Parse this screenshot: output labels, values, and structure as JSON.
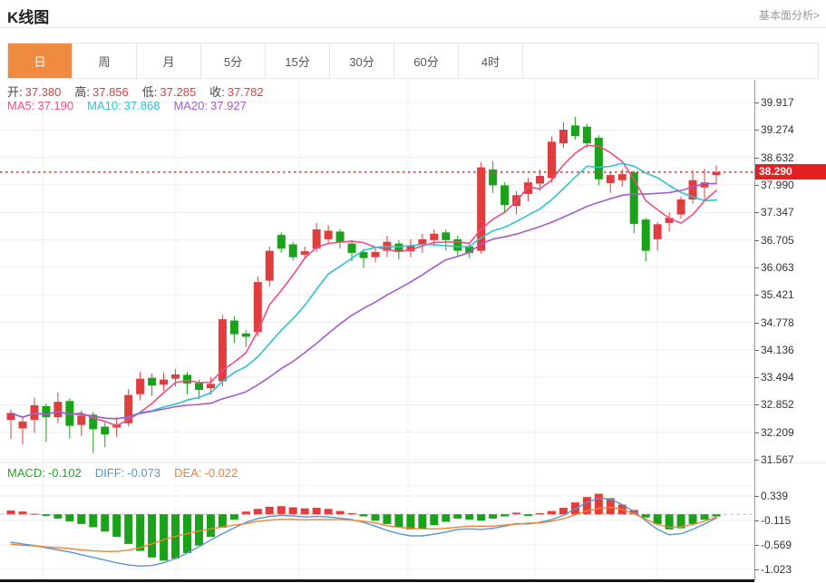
{
  "header": {
    "title": "K线图",
    "link": "基本面分析>"
  },
  "tabs": {
    "items": [
      "日",
      "周",
      "月",
      "5分",
      "15分",
      "30分",
      "60分",
      "4时"
    ],
    "active": "日"
  },
  "info": {
    "ohlc": [
      {
        "label": "开:",
        "value": "37.380"
      },
      {
        "label": "高:",
        "value": "37.856"
      },
      {
        "label": "低:",
        "value": "37.285"
      },
      {
        "label": "收:",
        "value": "37.782"
      }
    ],
    "ma": [
      {
        "label": "MA5:",
        "value": "37.190",
        "color": "#ef4d82"
      },
      {
        "label": "MA10:",
        "value": "37.868",
        "color": "#2cc2d4"
      },
      {
        "label": "MA20:",
        "value": "37.927",
        "color": "#a55bc9"
      }
    ],
    "macd": [
      {
        "label": "MACD:",
        "value": "-0.102",
        "color": "#27a227"
      },
      {
        "label": "DIFF:",
        "value": "-0.073",
        "color": "#5795d3"
      },
      {
        "label": "DEA:",
        "value": "-0.022",
        "color": "#ee8433"
      }
    ]
  },
  "axis": {
    "price_tag": "38.290"
  },
  "colors": {
    "up": "#e13d3d",
    "down": "#1aa21a",
    "ma5": "#ef4d82",
    "ma10": "#2cc2d4",
    "ma20": "#a55bc9",
    "diff": "#5795d3",
    "dea": "#ee8433",
    "active_tab_bg": "#ef8b41",
    "price_line": "#e13d3d",
    "tag_bg": "#e52020",
    "grid_h": "#ececec",
    "grid_v": "#f1f1f1",
    "zero_dash": "#a9cdcd"
  },
  "chart_data": [
    {
      "type": "candlestick",
      "title": "K线图 (日)",
      "ohlc_order": [
        "open",
        "high",
        "low",
        "close"
      ],
      "y_ticks": [
        39.917,
        39.274,
        38.632,
        37.99,
        37.347,
        36.705,
        36.063,
        35.421,
        34.778,
        34.136,
        33.494,
        32.852,
        32.209,
        31.567
      ],
      "last_price": 38.29,
      "candles": [
        [
          32.5,
          32.74,
          32.05,
          32.66
        ],
        [
          32.3,
          32.54,
          31.92,
          32.46
        ],
        [
          32.5,
          33.02,
          32.2,
          32.84
        ],
        [
          32.82,
          32.88,
          31.98,
          32.56
        ],
        [
          32.56,
          33.14,
          32.42,
          32.92
        ],
        [
          32.94,
          33.0,
          32.06,
          32.36
        ],
        [
          32.38,
          32.72,
          32.12,
          32.6
        ],
        [
          32.62,
          32.68,
          31.72,
          32.28
        ],
        [
          32.34,
          32.44,
          31.86,
          32.16
        ],
        [
          32.32,
          32.56,
          32.1,
          32.4
        ],
        [
          32.42,
          33.22,
          32.34,
          33.08
        ],
        [
          33.1,
          33.62,
          32.96,
          33.46
        ],
        [
          33.48,
          33.58,
          33.06,
          33.3
        ],
        [
          33.32,
          33.6,
          33.18,
          33.44
        ],
        [
          33.46,
          33.68,
          33.28,
          33.56
        ],
        [
          33.55,
          33.62,
          33.1,
          33.35
        ],
        [
          33.36,
          33.44,
          32.98,
          33.2
        ],
        [
          33.24,
          33.5,
          33.08,
          33.34
        ],
        [
          33.4,
          34.95,
          33.28,
          34.85
        ],
        [
          34.82,
          34.92,
          34.3,
          34.5
        ],
        [
          34.52,
          34.6,
          34.2,
          34.44
        ],
        [
          34.55,
          35.85,
          34.45,
          35.72
        ],
        [
          35.75,
          36.55,
          35.62,
          36.45
        ],
        [
          36.82,
          36.88,
          36.4,
          36.5
        ],
        [
          36.6,
          36.66,
          36.22,
          36.3
        ],
        [
          36.36,
          36.55,
          36.25,
          36.44
        ],
        [
          36.5,
          37.1,
          36.42,
          36.95
        ],
        [
          36.72,
          37.05,
          36.6,
          36.92
        ],
        [
          36.9,
          36.96,
          36.5,
          36.65
        ],
        [
          36.62,
          36.7,
          36.2,
          36.4
        ],
        [
          36.42,
          36.5,
          36.05,
          36.28
        ],
        [
          36.3,
          36.52,
          36.18,
          36.42
        ],
        [
          36.45,
          36.8,
          36.3,
          36.66
        ],
        [
          36.62,
          36.7,
          36.25,
          36.42
        ],
        [
          36.44,
          36.72,
          36.3,
          36.58
        ],
        [
          36.6,
          36.85,
          36.4,
          36.72
        ],
        [
          36.7,
          36.95,
          36.55,
          36.85
        ],
        [
          36.88,
          36.95,
          36.45,
          36.7
        ],
        [
          36.72,
          36.8,
          36.3,
          36.45
        ],
        [
          36.55,
          36.62,
          36.28,
          36.4
        ],
        [
          36.45,
          38.52,
          36.38,
          38.4
        ],
        [
          38.35,
          38.55,
          37.8,
          37.98
        ],
        [
          37.98,
          38.05,
          37.32,
          37.52
        ],
        [
          37.5,
          37.85,
          37.3,
          37.75
        ],
        [
          37.78,
          38.15,
          37.6,
          38.05
        ],
        [
          38.02,
          38.35,
          37.85,
          38.2
        ],
        [
          38.15,
          39.12,
          38.05,
          39.0
        ],
        [
          38.96,
          39.45,
          38.85,
          39.28
        ],
        [
          39.38,
          39.58,
          39.05,
          39.13
        ],
        [
          39.35,
          39.42,
          38.85,
          38.96
        ],
        [
          39.09,
          39.15,
          37.98,
          38.12
        ],
        [
          38.03,
          38.3,
          37.8,
          38.22
        ],
        [
          38.1,
          38.36,
          37.95,
          38.24
        ],
        [
          38.28,
          38.32,
          36.86,
          37.08
        ],
        [
          37.18,
          37.22,
          36.2,
          36.45
        ],
        [
          36.72,
          37.12,
          36.45,
          37.07
        ],
        [
          37.1,
          37.35,
          36.9,
          37.22
        ],
        [
          37.3,
          37.72,
          37.2,
          37.65
        ],
        [
          37.65,
          38.33,
          37.55,
          38.1
        ],
        [
          37.93,
          38.37,
          37.6,
          38.05
        ],
        [
          38.22,
          38.45,
          38.0,
          38.29
        ]
      ],
      "ma_windows": [
        5,
        10,
        20
      ]
    },
    {
      "type": "bar",
      "title": "MACD(12,26,9)",
      "y_ticks": [
        0.339,
        -0.115,
        -0.569,
        -1.023
      ],
      "hist": [
        0.07,
        0.05,
        0.01,
        -0.03,
        -0.08,
        -0.13,
        -0.18,
        -0.24,
        -0.32,
        -0.42,
        -0.55,
        -0.68,
        -0.8,
        -0.86,
        -0.82,
        -0.72,
        -0.58,
        -0.42,
        -0.25,
        -0.1,
        0.05,
        0.1,
        0.14,
        0.15,
        0.13,
        0.11,
        0.12,
        0.1,
        0.06,
        0.02,
        -0.04,
        -0.12,
        -0.18,
        -0.24,
        -0.28,
        -0.26,
        -0.2,
        -0.14,
        -0.08,
        -0.1,
        -0.12,
        -0.08,
        -0.04,
        0.03,
        -0.03,
        0.02,
        0.06,
        0.12,
        0.22,
        0.32,
        0.38,
        0.3,
        0.18,
        0.08,
        -0.06,
        -0.18,
        -0.28,
        -0.26,
        -0.18,
        -0.1,
        -0.04
      ],
      "diff": [
        -0.52,
        -0.55,
        -0.58,
        -0.62,
        -0.66,
        -0.7,
        -0.75,
        -0.8,
        -0.85,
        -0.9,
        -0.94,
        -0.96,
        -0.95,
        -0.9,
        -0.82,
        -0.72,
        -0.6,
        -0.48,
        -0.36,
        -0.25,
        -0.15,
        -0.08,
        -0.04,
        -0.02,
        -0.03,
        -0.05,
        -0.04,
        -0.05,
        -0.07,
        -0.1,
        -0.15,
        -0.22,
        -0.3,
        -0.36,
        -0.4,
        -0.4,
        -0.37,
        -0.33,
        -0.28,
        -0.27,
        -0.28,
        -0.26,
        -0.22,
        -0.17,
        -0.18,
        -0.15,
        -0.1,
        -0.02,
        0.1,
        0.22,
        0.3,
        0.28,
        0.18,
        0.05,
        -0.12,
        -0.28,
        -0.38,
        -0.36,
        -0.28,
        -0.18,
        -0.07
      ]
    }
  ]
}
